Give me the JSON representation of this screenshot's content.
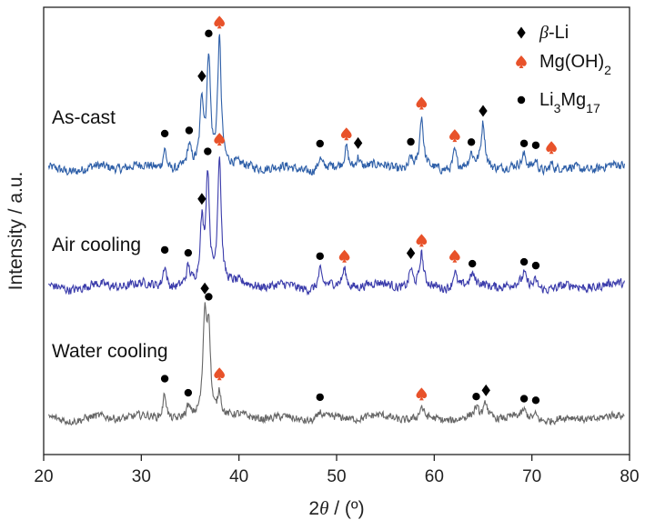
{
  "chart_data": {
    "type": "line",
    "xlabel_pre": "2",
    "xlabel_theta": "θ",
    "xlabel_post": " / (º)",
    "ylabel": "Intensity / a.u.",
    "xlim": [
      20,
      80
    ],
    "x_ticks": [
      "20",
      "30",
      "40",
      "50",
      "60",
      "70",
      "80"
    ],
    "y_ticks_visible": false,
    "grid": false,
    "legend_position": "top-right",
    "legend": [
      {
        "key": "beta_li",
        "pre": "",
        "italic": "β",
        "post": "-Li",
        "sub1": "",
        "mid": "",
        "sub2": "",
        "marker": "diamond",
        "color": "#000000"
      },
      {
        "key": "mgoh2",
        "pre": "Mg(OH)",
        "italic": "",
        "post": "",
        "sub1": "2",
        "mid": "",
        "sub2": "",
        "marker": "spade",
        "color": "#e8522a"
      },
      {
        "key": "li3mg17",
        "pre": "Li",
        "italic": "",
        "post": "",
        "sub1": "3",
        "mid": "Mg",
        "sub2": "17",
        "marker": "circle",
        "color": "#000000"
      }
    ],
    "series": [
      {
        "name": "As-cast",
        "color": "#2e5fa8",
        "baseline": 0,
        "peaks": [
          [
            32.4,
            0.55
          ],
          [
            34.9,
            0.55
          ],
          [
            36.2,
            1.75
          ],
          [
            36.9,
            2.9
          ],
          [
            38.0,
            3.35
          ],
          [
            48.3,
            0.3
          ],
          [
            51.0,
            0.55
          ],
          [
            52.2,
            0.3
          ],
          [
            57.6,
            0.3
          ],
          [
            58.7,
            1.35
          ],
          [
            62.1,
            0.5
          ],
          [
            63.8,
            0.3
          ],
          [
            65.0,
            1.15
          ],
          [
            69.2,
            0.3
          ],
          [
            70.4,
            0.25
          ],
          [
            72.0,
            0.2
          ]
        ],
        "markers": [
          {
            "x": 32.4,
            "type": "circle"
          },
          {
            "x": 34.9,
            "type": "circle"
          },
          {
            "x": 36.2,
            "type": "diamond"
          },
          {
            "x": 36.9,
            "type": "circle"
          },
          {
            "x": 38.0,
            "type": "spade"
          },
          {
            "x": 48.3,
            "type": "circle"
          },
          {
            "x": 51.0,
            "type": "spade"
          },
          {
            "x": 52.2,
            "type": "diamond"
          },
          {
            "x": 57.6,
            "type": "circle"
          },
          {
            "x": 58.7,
            "type": "spade"
          },
          {
            "x": 62.1,
            "type": "spade"
          },
          {
            "x": 63.8,
            "type": "circle"
          },
          {
            "x": 65.0,
            "type": "diamond"
          },
          {
            "x": 69.2,
            "type": "circle"
          },
          {
            "x": 70.4,
            "type": "circle"
          },
          {
            "x": 72.0,
            "type": "spade"
          }
        ]
      },
      {
        "name": "Air cooling",
        "color": "#3b3cab",
        "baseline": 0,
        "peaks": [
          [
            32.4,
            0.6
          ],
          [
            34.8,
            0.45
          ],
          [
            36.2,
            1.55
          ],
          [
            36.8,
            2.9
          ],
          [
            38.0,
            3.4
          ],
          [
            48.3,
            0.45
          ],
          [
            50.8,
            0.45
          ],
          [
            57.6,
            0.5
          ],
          [
            58.7,
            0.85
          ],
          [
            62.1,
            0.45
          ],
          [
            63.9,
            0.25
          ],
          [
            69.2,
            0.3
          ],
          [
            70.4,
            0.2
          ]
        ],
        "markers": [
          {
            "x": 32.4,
            "type": "circle"
          },
          {
            "x": 34.8,
            "type": "circle"
          },
          {
            "x": 36.2,
            "type": "diamond"
          },
          {
            "x": 36.8,
            "type": "circle"
          },
          {
            "x": 38.0,
            "type": "spade"
          },
          {
            "x": 48.3,
            "type": "circle"
          },
          {
            "x": 50.8,
            "type": "spade"
          },
          {
            "x": 57.6,
            "type": "diamond"
          },
          {
            "x": 58.7,
            "type": "spade"
          },
          {
            "x": 62.1,
            "type": "spade"
          },
          {
            "x": 63.9,
            "type": "circle"
          },
          {
            "x": 69.2,
            "type": "circle"
          },
          {
            "x": 70.4,
            "type": "circle"
          }
        ]
      },
      {
        "name": "Water cooling",
        "color": "#666666",
        "baseline": 0,
        "peaks": [
          [
            32.4,
            0.8
          ],
          [
            34.8,
            0.3
          ],
          [
            36.5,
            2.95
          ],
          [
            36.9,
            2.6
          ],
          [
            38.0,
            0.8
          ],
          [
            48.3,
            0.25
          ],
          [
            58.7,
            0.35
          ],
          [
            64.3,
            0.25
          ],
          [
            65.3,
            0.45
          ],
          [
            69.2,
            0.2
          ],
          [
            70.4,
            0.15
          ]
        ],
        "markers": [
          {
            "x": 32.4,
            "type": "circle"
          },
          {
            "x": 34.8,
            "type": "circle"
          },
          {
            "x": 36.5,
            "type": "diamond"
          },
          {
            "x": 36.9,
            "type": "circle"
          },
          {
            "x": 38.0,
            "type": "spade"
          },
          {
            "x": 48.3,
            "type": "circle"
          },
          {
            "x": 58.7,
            "type": "spade"
          },
          {
            "x": 64.3,
            "type": "circle"
          },
          {
            "x": 65.3,
            "type": "diamond"
          },
          {
            "x": 69.2,
            "type": "circle"
          },
          {
            "x": 70.4,
            "type": "circle"
          }
        ]
      }
    ]
  }
}
